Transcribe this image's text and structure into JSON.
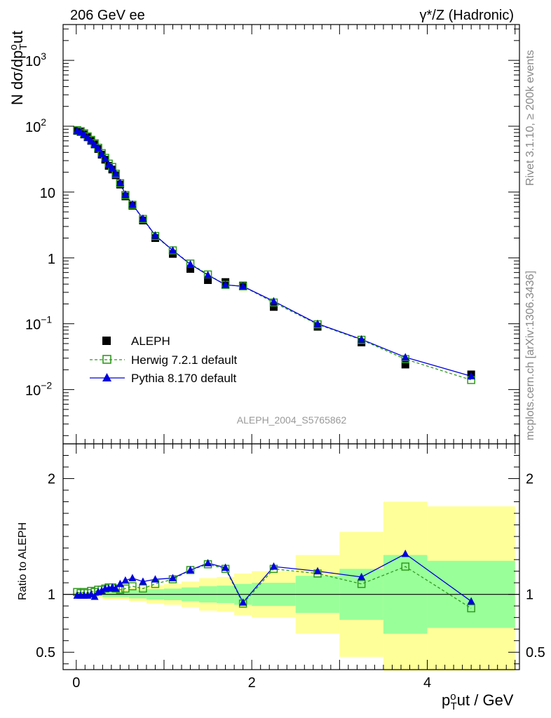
{
  "header": {
    "left_title": "206 GeV ee",
    "right_title": "γ*/Z (Hadronic)"
  },
  "side_text": {
    "rivet": "Rivet 3.1.10, ≥ 200k events",
    "mcplots": "mcplots.cern.ch [arXiv:1306.3436]"
  },
  "watermark": "ALEPH_2004_S5765862",
  "colors": {
    "data": "#000000",
    "herwig": "#2f9a1c",
    "pythia": "#0000dd",
    "band_inner": "#99ff99",
    "band_outer": "#ffff99"
  },
  "legend": {
    "data": "ALEPH",
    "herwig": "Herwig 7.2.1 default",
    "pythia": "Pythia 8.170 default"
  },
  "chart_data": [
    {
      "type": "scatter",
      "title": "",
      "xlabel": "p_T^o ut / GeV",
      "ylabel": "N dσ/dp_T^o ut",
      "yscale": "log",
      "xlim": [
        -0.15,
        5.05
      ],
      "ylim": [
        0.0015,
        3500
      ],
      "y_ticks": [
        "10^-2",
        "10^-1",
        "1",
        "10",
        "10^2",
        "10^3"
      ],
      "x": [
        0.01,
        0.05,
        0.09,
        0.13,
        0.17,
        0.21,
        0.25,
        0.29,
        0.33,
        0.37,
        0.41,
        0.45,
        0.5,
        0.56,
        0.64,
        0.76,
        0.9,
        1.1,
        1.3,
        1.5,
        1.7,
        1.9,
        2.25,
        2.75,
        3.25,
        3.75,
        4.5
      ],
      "series": [
        {
          "name": "ALEPH",
          "values": [
            85,
            82,
            75,
            68,
            60,
            53,
            45,
            37,
            31,
            25,
            22,
            18,
            13,
            8.6,
            6.2,
            3.7,
            2.0,
            1.15,
            0.68,
            0.46,
            0.43,
            0.38,
            0.18,
            0.09,
            0.052,
            0.024,
            0.017
          ]
        },
        {
          "name": "Herwig 7.2.1 default",
          "values": [
            87,
            84,
            78,
            70,
            62,
            55,
            47,
            39,
            33,
            27,
            24,
            19,
            13.6,
            9.0,
            6.4,
            3.9,
            2.15,
            1.3,
            0.82,
            0.56,
            0.39,
            0.37,
            0.21,
            0.098,
            0.057,
            0.029,
            0.014
          ]
        },
        {
          "name": "Pythia 8.170 default",
          "values": [
            85,
            81,
            74,
            67,
            59,
            52,
            46,
            38,
            32,
            26,
            23,
            19,
            13.8,
            9.2,
            6.5,
            3.95,
            2.2,
            1.3,
            0.8,
            0.55,
            0.39,
            0.37,
            0.22,
            0.1,
            0.058,
            0.031,
            0.016
          ]
        }
      ]
    },
    {
      "type": "line",
      "title": "",
      "xlabel": "p_T^o ut / GeV",
      "ylabel": "Ratio to ALEPH",
      "ylim": [
        0.35,
        2.3
      ],
      "y_ticks": [
        0.5,
        1,
        2
      ],
      "x_ticks": [
        0,
        2,
        4
      ],
      "x": [
        0.01,
        0.05,
        0.09,
        0.13,
        0.17,
        0.21,
        0.25,
        0.29,
        0.33,
        0.37,
        0.41,
        0.45,
        0.5,
        0.56,
        0.64,
        0.76,
        0.9,
        1.1,
        1.3,
        1.5,
        1.7,
        1.9,
        2.25,
        2.75,
        3.25,
        3.75,
        4.5
      ],
      "series": [
        {
          "name": "Herwig 7.2.1 default",
          "values": [
            1.02,
            1.01,
            1.02,
            1.01,
            1.03,
            1.02,
            1.04,
            1.04,
            1.05,
            1.06,
            1.06,
            1.05,
            1.04,
            1.05,
            1.07,
            1.05,
            1.09,
            1.13,
            1.21,
            1.26,
            1.22,
            0.92,
            1.22,
            1.18,
            1.09,
            1.24,
            0.88
          ]
        },
        {
          "name": "Pythia 8.170 default",
          "values": [
            0.99,
            0.99,
            0.99,
            0.99,
            1.0,
            0.98,
            1.02,
            1.03,
            1.05,
            1.05,
            1.06,
            1.05,
            1.09,
            1.12,
            1.14,
            1.11,
            1.13,
            1.14,
            1.21,
            1.27,
            1.23,
            0.93,
            1.24,
            1.2,
            1.15,
            1.35,
            0.94
          ]
        }
      ],
      "uncertainty_bands": [
        {
          "x0": -0.02,
          "x1": 0.3,
          "inner": [
            0.985,
            1.015
          ],
          "outer": [
            0.975,
            1.025
          ]
        },
        {
          "x0": 0.3,
          "x1": 0.6,
          "inner": [
            0.975,
            1.025
          ],
          "outer": [
            0.955,
            1.045
          ]
        },
        {
          "x0": 0.6,
          "x1": 0.8,
          "inner": [
            0.965,
            1.035
          ],
          "outer": [
            0.94,
            1.06
          ]
        },
        {
          "x0": 0.8,
          "x1": 1.0,
          "inner": [
            0.955,
            1.045
          ],
          "outer": [
            0.92,
            1.08
          ]
        },
        {
          "x0": 1.0,
          "x1": 1.2,
          "inner": [
            0.95,
            1.05
          ],
          "outer": [
            0.91,
            1.09
          ]
        },
        {
          "x0": 1.2,
          "x1": 1.4,
          "inner": [
            0.94,
            1.06
          ],
          "outer": [
            0.89,
            1.11
          ]
        },
        {
          "x0": 1.4,
          "x1": 1.6,
          "inner": [
            0.93,
            1.07
          ],
          "outer": [
            0.86,
            1.14
          ]
        },
        {
          "x0": 1.6,
          "x1": 1.8,
          "inner": [
            0.925,
            1.075
          ],
          "outer": [
            0.85,
            1.15
          ]
        },
        {
          "x0": 1.8,
          "x1": 2.0,
          "inner": [
            0.91,
            1.09
          ],
          "outer": [
            0.82,
            1.18
          ]
        },
        {
          "x0": 2.0,
          "x1": 2.5,
          "inner": [
            0.9,
            1.1
          ],
          "outer": [
            0.8,
            1.2
          ]
        },
        {
          "x0": 2.5,
          "x1": 3.0,
          "inner": [
            0.84,
            1.16
          ],
          "outer": [
            0.66,
            1.34
          ]
        },
        {
          "x0": 3.0,
          "x1": 3.5,
          "inner": [
            0.78,
            1.22
          ],
          "outer": [
            0.46,
            1.54
          ]
        },
        {
          "x0": 3.5,
          "x1": 4.0,
          "inner": [
            0.66,
            1.34
          ],
          "outer": [
            0.34,
            1.8
          ]
        },
        {
          "x0": 4.0,
          "x1": 5.0,
          "inner": [
            0.71,
            1.29
          ],
          "outer": [
            0.34,
            1.76
          ]
        }
      ]
    }
  ]
}
